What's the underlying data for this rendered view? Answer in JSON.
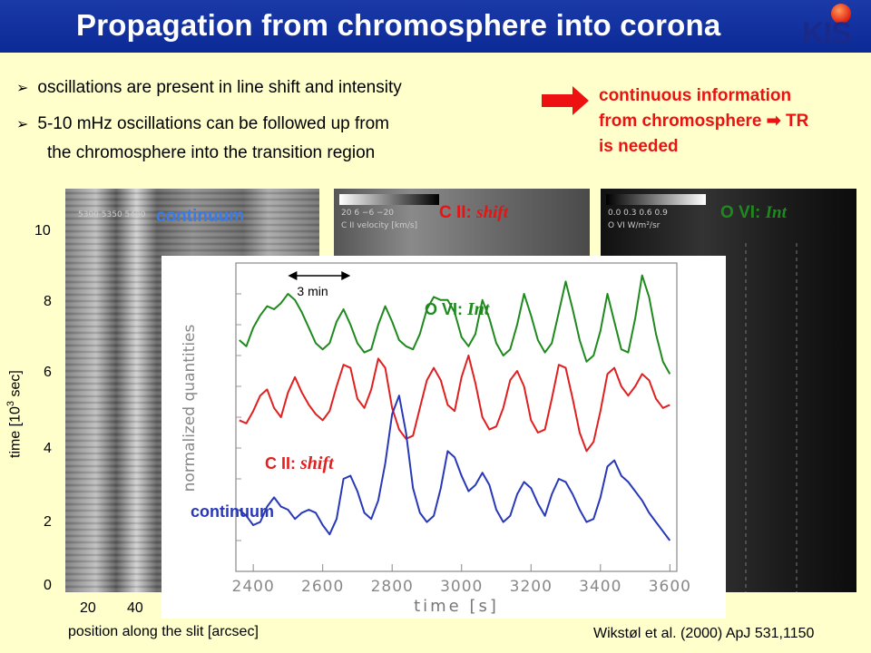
{
  "title": "Propagation from chromosphere into corona",
  "logo": "KIS",
  "bullets": [
    "oscillations are present in line shift and intensity",
    "5-10 mHz oscillations can be followed up from",
    "the chromosphere into the transition region"
  ],
  "note": {
    "line1": "continuous information",
    "line2a": "from chromosphere",
    "line2b": "TR",
    "line3": "is needed"
  },
  "panels": {
    "p1_label": "continuum",
    "p2_label_a": "C II: ",
    "p2_label_b": "shift",
    "p3_label_a": "O VI: ",
    "p3_label_b": "Int",
    "p1_cbar": "5300 5350 5400",
    "p2_cbar_ticks": "20   6   −6   −20",
    "p2_cbar_label": "C II velocity [km/s]",
    "p3_cbar_ticks": "0.0  0.3  0.6  0.9",
    "p3_cbar_label": "O VI W/m²/sr"
  },
  "axes": {
    "yticks": [
      "10",
      "8",
      "6",
      "4",
      "2",
      "0"
    ],
    "ylabel_a": "time  [10",
    "ylabel_sup": "3",
    "ylabel_b": " sec]",
    "xticks": [
      "20",
      "40"
    ],
    "xlabel": "position along the slit  [arcsec]"
  },
  "citation": "Wikstøl et al. (2000) ApJ 531,1150",
  "chart_data": {
    "type": "line",
    "xlabel": "time  [s]",
    "ylabel": "normalized quantities",
    "xlim": [
      2350,
      3620
    ],
    "ylim": [
      0,
      10
    ],
    "xticks": [
      2400,
      2600,
      2800,
      3000,
      3200,
      3400,
      3600
    ],
    "annotation": "3 min",
    "series": [
      {
        "name": "O VI: Int",
        "color": "#1e8a1e",
        "x": [
          2360,
          2380,
          2400,
          2420,
          2440,
          2460,
          2480,
          2500,
          2520,
          2540,
          2560,
          2580,
          2600,
          2620,
          2640,
          2660,
          2680,
          2700,
          2720,
          2740,
          2760,
          2780,
          2800,
          2820,
          2840,
          2860,
          2880,
          2900,
          2920,
          2940,
          2960,
          2980,
          3000,
          3020,
          3040,
          3060,
          3080,
          3100,
          3120,
          3140,
          3160,
          3180,
          3200,
          3220,
          3240,
          3260,
          3280,
          3300,
          3320,
          3340,
          3360,
          3380,
          3400,
          3420,
          3440,
          3460,
          3480,
          3500,
          3520,
          3540,
          3560,
          3580,
          3600
        ],
        "y": [
          7.5,
          7.3,
          7.9,
          8.3,
          8.6,
          8.5,
          8.7,
          9.0,
          8.8,
          8.4,
          7.9,
          7.4,
          7.2,
          7.4,
          8.1,
          8.5,
          8.0,
          7.4,
          7.1,
          7.2,
          8.0,
          8.6,
          8.1,
          7.5,
          7.3,
          7.2,
          7.7,
          8.5,
          8.9,
          8.8,
          8.8,
          8.4,
          7.6,
          7.3,
          7.7,
          8.8,
          8.2,
          7.4,
          7.0,
          7.2,
          8.0,
          9.0,
          8.3,
          7.5,
          7.1,
          7.4,
          8.4,
          9.4,
          8.5,
          7.5,
          6.8,
          7.0,
          7.8,
          9.0,
          8.1,
          7.2,
          7.1,
          8.2,
          9.6,
          8.9,
          7.7,
          6.8,
          6.4
        ]
      },
      {
        "name": "C II: shift",
        "color": "#e02020",
        "x": [
          2360,
          2380,
          2400,
          2420,
          2440,
          2460,
          2480,
          2500,
          2520,
          2540,
          2560,
          2580,
          2600,
          2620,
          2640,
          2660,
          2680,
          2700,
          2720,
          2740,
          2760,
          2780,
          2800,
          2820,
          2840,
          2860,
          2880,
          2900,
          2920,
          2940,
          2960,
          2980,
          3000,
          3020,
          3040,
          3060,
          3080,
          3100,
          3120,
          3140,
          3160,
          3180,
          3200,
          3220,
          3240,
          3260,
          3280,
          3300,
          3320,
          3340,
          3360,
          3380,
          3400,
          3420,
          3440,
          3460,
          3480,
          3500,
          3520,
          3540,
          3560,
          3580,
          3600
        ],
        "y": [
          4.9,
          4.8,
          5.2,
          5.7,
          5.9,
          5.3,
          5.0,
          5.8,
          6.3,
          5.8,
          5.4,
          5.1,
          4.9,
          5.2,
          6.0,
          6.7,
          6.6,
          5.6,
          5.3,
          5.9,
          6.9,
          6.6,
          5.3,
          4.6,
          4.3,
          4.4,
          5.3,
          6.2,
          6.6,
          6.2,
          5.4,
          5.2,
          6.3,
          7.0,
          6.1,
          5.0,
          4.6,
          4.7,
          5.3,
          6.2,
          6.5,
          6.0,
          4.9,
          4.5,
          4.6,
          5.6,
          6.7,
          6.6,
          5.6,
          4.5,
          3.9,
          4.2,
          5.2,
          6.4,
          6.6,
          6.0,
          5.7,
          6.0,
          6.4,
          6.2,
          5.6,
          5.3,
          5.4
        ]
      },
      {
        "name": "continuum",
        "color": "#2838b8",
        "x": [
          2360,
          2380,
          2400,
          2420,
          2440,
          2460,
          2480,
          2500,
          2520,
          2540,
          2560,
          2580,
          2600,
          2620,
          2640,
          2660,
          2680,
          2700,
          2720,
          2740,
          2760,
          2780,
          2800,
          2820,
          2840,
          2860,
          2880,
          2900,
          2920,
          2940,
          2960,
          2980,
          3000,
          3020,
          3040,
          3060,
          3080,
          3100,
          3120,
          3140,
          3160,
          3180,
          3200,
          3220,
          3240,
          3260,
          3280,
          3300,
          3320,
          3340,
          3360,
          3380,
          3400,
          3420,
          3440,
          3460,
          3480,
          3500,
          3520,
          3540,
          3560,
          3580,
          3600
        ],
        "y": [
          2.0,
          1.8,
          1.5,
          1.6,
          2.1,
          2.4,
          2.1,
          2.0,
          1.7,
          1.9,
          2.0,
          1.9,
          1.5,
          1.2,
          1.7,
          3.0,
          3.1,
          2.6,
          1.9,
          1.7,
          2.3,
          3.5,
          5.1,
          5.7,
          4.5,
          2.7,
          1.9,
          1.6,
          1.8,
          2.7,
          3.9,
          3.7,
          3.1,
          2.6,
          2.8,
          3.2,
          2.8,
          2.0,
          1.6,
          1.8,
          2.5,
          2.9,
          2.7,
          2.2,
          1.8,
          2.5,
          3.0,
          2.9,
          2.5,
          2.0,
          1.6,
          1.7,
          2.4,
          3.4,
          3.6,
          3.1,
          2.9,
          2.6,
          2.3,
          1.9,
          1.6,
          1.3,
          1.0
        ]
      }
    ],
    "labels": {
      "ovi_a": "O VI: ",
      "ovi_b": "Int",
      "cii_a": "C II: ",
      "cii_b": "shift",
      "cont": "continuum"
    }
  }
}
